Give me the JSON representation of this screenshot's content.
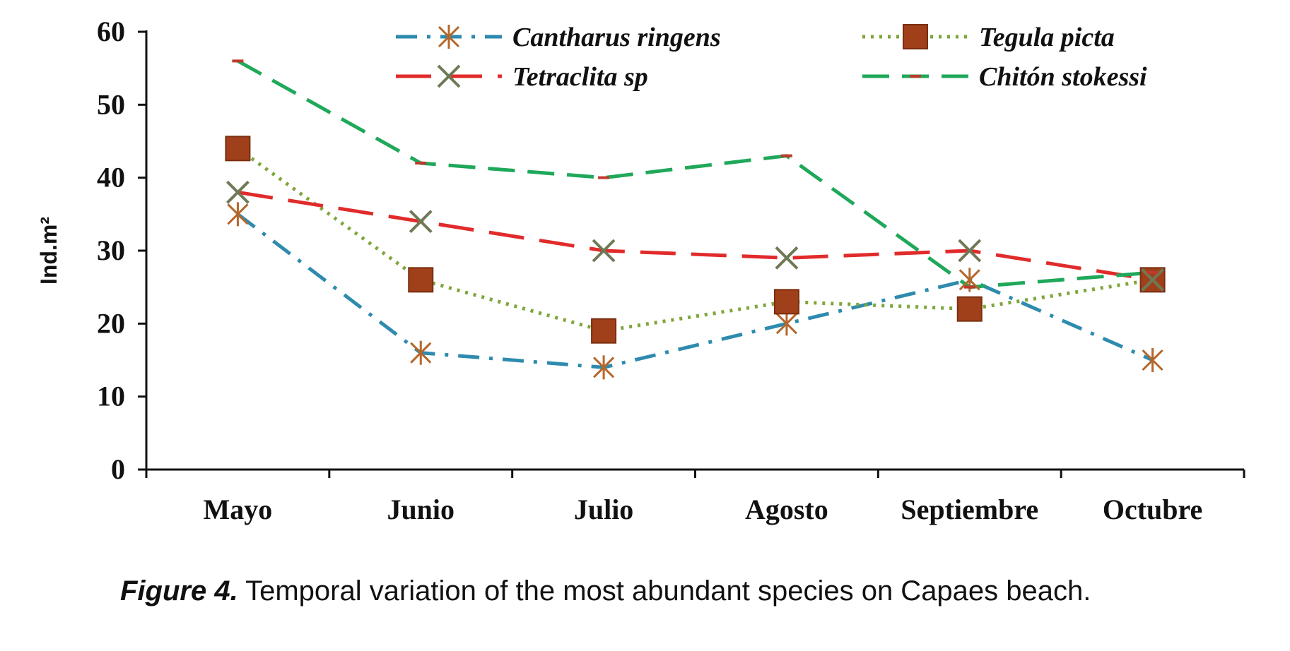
{
  "chart_data": {
    "type": "line",
    "categories": [
      "Mayo",
      "Junio",
      "Julio",
      "Agosto",
      "Septiembre",
      "Octubre"
    ],
    "ylabel": "Ind.m²",
    "xlabel": "",
    "ylim": [
      0,
      60
    ],
    "yticks": [
      0,
      10,
      20,
      30,
      40,
      50,
      60
    ],
    "grid": false,
    "legend_position": "top",
    "series": [
      {
        "name": "Cantharus ringens",
        "values": [
          35,
          16,
          14,
          20,
          26,
          15
        ],
        "color": "#2E8BAE",
        "marker": "asterisk",
        "marker_color": "#B5662A",
        "dash": "dashdot"
      },
      {
        "name": "Tegula picta",
        "values": [
          44,
          26,
          19,
          23,
          22,
          26
        ],
        "color": "#7EA63B",
        "marker": "square",
        "marker_color": "#A0401A",
        "dash": "dotted"
      },
      {
        "name": "Tetraclita sp",
        "values": [
          38,
          34,
          30,
          29,
          30,
          26
        ],
        "color": "#E12B2B",
        "marker": "x",
        "marker_color": "#6E7A55",
        "dash": "longdash"
      },
      {
        "name": "Chitón  stokessi",
        "values": [
          56,
          42,
          40,
          43,
          25,
          27
        ],
        "color": "#1FA85A",
        "marker": "dash",
        "marker_color": "#C0392B",
        "dash": "dashed"
      }
    ]
  },
  "caption": {
    "label": "Figure 4.",
    "text": " Temporal variation of the most abundant species on Capaes beach."
  }
}
